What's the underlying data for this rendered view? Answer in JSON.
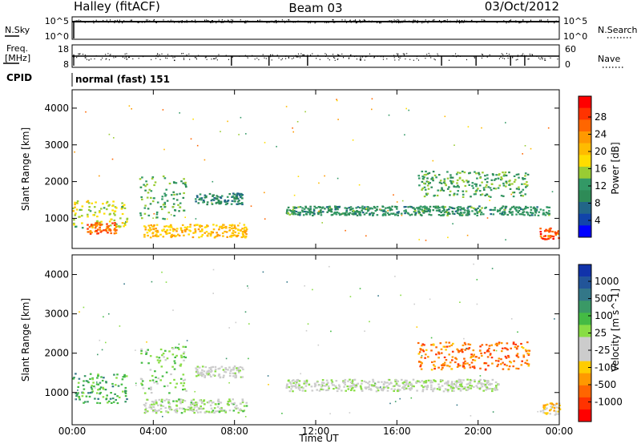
{
  "header": {
    "station": "Halley (fitACF)",
    "beam": "Beam 03",
    "date": "03/Oct/2012"
  },
  "strips": {
    "nsky_label": "N.Sky",
    "nsky_ticks": [
      "10^5",
      "10^0"
    ],
    "nsearch_label": "N.Search",
    "nsearch_ticks": [
      "10^5",
      "10^0"
    ],
    "freq_label_1": "Freq.",
    "freq_label_2": "[MHz]",
    "freq_ticks": [
      "18",
      "8"
    ],
    "nave_label": "Nave",
    "nave_ticks": [
      "60",
      "0"
    ],
    "cpid_label": "CPID",
    "cpid_value": "normal (fast) 151"
  },
  "axes": {
    "ylabel": "Slant Range [km]",
    "xlabel": "Time UT",
    "yticks": [
      "4000",
      "3000",
      "2000",
      "1000"
    ],
    "xticks": [
      "00:00",
      "04:00",
      "08:00",
      "12:00",
      "16:00",
      "20:00",
      "00:00"
    ]
  },
  "colorbars": {
    "power": {
      "label": "Power [dB]",
      "ticks": [
        "28",
        "24",
        "20",
        "16",
        "12",
        "8",
        "4"
      ],
      "colors": [
        "#ff0000",
        "#ff3300",
        "#ff6600",
        "#ff9900",
        "#ffbb00",
        "#ffdd00",
        "#99cc33",
        "#339966",
        "#2e8b57",
        "#226688",
        "#1144aa",
        "#0000ff"
      ]
    },
    "velocity": {
      "label": "Velocity [m s^-1]",
      "ticks": [
        "1000",
        "500",
        "100",
        "25",
        "-25",
        "-100",
        "-500",
        "-1000"
      ],
      "colors": [
        "#1133aa",
        "#225599",
        "#337788",
        "#3a9966",
        "#44bb44",
        "#88dd44",
        "#cccccc",
        "#cccccc",
        "#ffcc00",
        "#ff9900",
        "#ff6600",
        "#ff3300",
        "#ff0000"
      ]
    }
  },
  "chart_data": [
    {
      "type": "heatmap",
      "title": "Power",
      "xlabel": "Time UT",
      "ylabel": "Slant Range [km]",
      "xlim": [
        0,
        24
      ],
      "ylim": [
        180,
        4500
      ],
      "colorbar_range": [
        0,
        32
      ],
      "colorbar_label": "Power [dB]",
      "echo_bands": [
        {
          "t_start": 0.0,
          "t_end": 2.7,
          "range_low": 750,
          "range_high": 1500,
          "value": 16
        },
        {
          "t_start": 0.7,
          "t_end": 2.2,
          "range_low": 600,
          "range_high": 900,
          "value": 26
        },
        {
          "t_start": 3.3,
          "t_end": 5.6,
          "range_low": 1000,
          "range_high": 2200,
          "value": 12
        },
        {
          "t_start": 3.5,
          "t_end": 8.6,
          "range_low": 500,
          "range_high": 850,
          "value": 20
        },
        {
          "t_start": 6.0,
          "t_end": 8.4,
          "range_low": 1400,
          "range_high": 1700,
          "value": 8
        },
        {
          "t_start": 10.5,
          "t_end": 23.5,
          "range_low": 1100,
          "range_high": 1350,
          "value": 10
        },
        {
          "t_start": 17.0,
          "t_end": 22.5,
          "range_low": 1600,
          "range_high": 2300,
          "value": 12
        },
        {
          "t_start": 23.0,
          "t_end": 24.0,
          "range_low": 450,
          "range_high": 750,
          "value": 28
        }
      ]
    },
    {
      "type": "heatmap",
      "title": "Velocity",
      "xlabel": "Time UT",
      "ylabel": "Slant Range [km]",
      "xlim": [
        0,
        24
      ],
      "ylim": [
        180,
        4500
      ],
      "colorbar_range": [
        -1000,
        1000
      ],
      "colorbar_label": "Velocity [m s^-1]",
      "echo_bands": [
        {
          "t_start": 0.0,
          "t_end": 2.7,
          "range_low": 750,
          "range_high": 1500,
          "value": 400
        },
        {
          "t_start": 3.3,
          "t_end": 5.6,
          "range_low": 1000,
          "range_high": 2200,
          "value": 200
        },
        {
          "t_start": 3.5,
          "t_end": 8.6,
          "range_low": 500,
          "range_high": 850,
          "value": 60
        },
        {
          "t_start": 6.0,
          "t_end": 8.4,
          "range_low": 1400,
          "range_high": 1700,
          "value": 0
        },
        {
          "t_start": 10.5,
          "t_end": 21.0,
          "range_low": 1050,
          "range_high": 1350,
          "value": 0
        },
        {
          "t_start": 17.0,
          "t_end": 22.5,
          "range_low": 1600,
          "range_high": 2300,
          "value": -600
        },
        {
          "t_start": 23.0,
          "t_end": 24.0,
          "range_low": 450,
          "range_high": 750,
          "value": -300
        }
      ]
    }
  ]
}
